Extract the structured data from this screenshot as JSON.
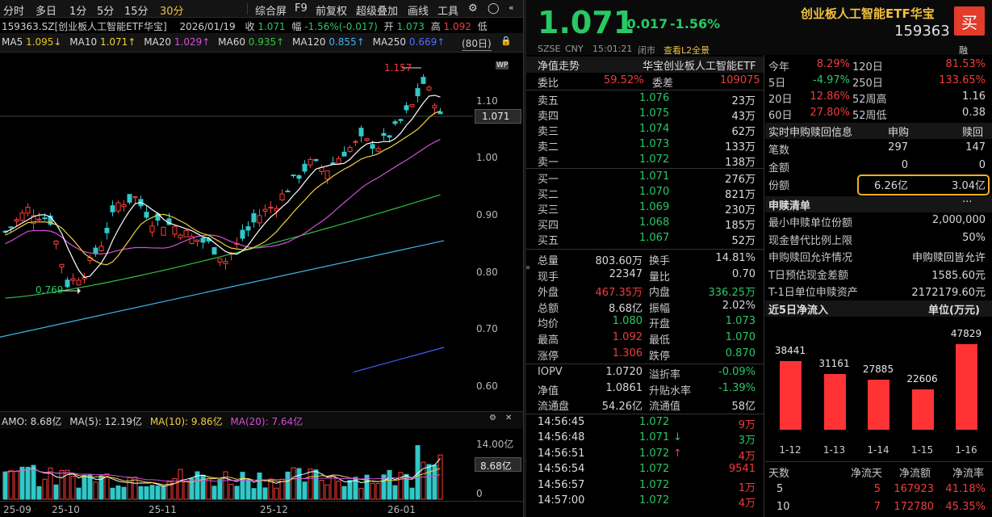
{
  "toolbar": {
    "items": [
      "分时",
      "多日",
      "1分",
      "5分",
      "15分",
      "30分",
      "综合屏",
      "F9",
      "前复权",
      "超级叠加",
      "画线",
      "工具"
    ],
    "active": "30分"
  },
  "info": {
    "symbol": "159363.SZ[创业板人工智能ETF华宝]",
    "date": "2026/01/19",
    "close_l": "收",
    "close": "1.071",
    "chg_l": "幅",
    "chg": "-1.56%(-0.017)",
    "open_l": "开",
    "open": "1.073",
    "high_l": "高",
    "high": "1.092",
    "trunc": "低"
  },
  "ma": {
    "ma5": "MA5",
    "v5": "1.095↓",
    "ma10": "MA10",
    "v10": "1.071↑",
    "ma20": "MA20",
    "v20": "1.029↑",
    "ma60": "MA60",
    "v60": "0.935↑",
    "ma120": "MA120",
    "v120": "0.855↑",
    "ma250": "MA250",
    "v250": "0.669↑",
    "period": "(80日)"
  },
  "price_ticks": [
    "1.10",
    "1.00",
    "0.90",
    "0.80",
    "0.70",
    "0.60"
  ],
  "price_current": "1.071",
  "marker_high": "1.157",
  "marker_low": "0.769",
  "amo": {
    "label": "AMO: 8.68亿",
    "ma5": "MA(5): 12.19亿",
    "ma10": "MA(10): 9.86亿",
    "ma20": "MA(20): 7.64亿",
    "tick1": "14.00亿",
    "current": "8.68亿",
    "tick0": "0"
  },
  "x_axis": [
    "25-09",
    "25-10",
    "25-11",
    "25-12",
    "26-01"
  ],
  "header": {
    "price": "1.071",
    "change": "-0.017",
    "pct": "-1.56%",
    "name": "创业板人工智能ETF华宝",
    "code": "159363",
    "buy": "买",
    "market": "SZSE",
    "cur": "CNY",
    "time": "15:01:21",
    "status": "闭市",
    "l2": "查看L2全景",
    "rong": "融"
  },
  "orderbook": {
    "nav_l": "净值走势",
    "fund": "华宝创业板人工智能ETF",
    "weibi_l": "委比",
    "weibi": "59.52%",
    "weicha_l": "委差",
    "weicha": "109075",
    "asks": [
      {
        "l": "卖五",
        "p": "1.076",
        "v": "23万"
      },
      {
        "l": "卖四",
        "p": "1.075",
        "v": "43万"
      },
      {
        "l": "卖三",
        "p": "1.074",
        "v": "62万"
      },
      {
        "l": "卖二",
        "p": "1.073",
        "v": "133万"
      },
      {
        "l": "卖一",
        "p": "1.072",
        "v": "138万"
      }
    ],
    "bids": [
      {
        "l": "买一",
        "p": "1.071",
        "v": "276万"
      },
      {
        "l": "买二",
        "p": "1.070",
        "v": "821万"
      },
      {
        "l": "买三",
        "p": "1.069",
        "v": "230万"
      },
      {
        "l": "买四",
        "p": "1.068",
        "v": "185万"
      },
      {
        "l": "买五",
        "p": "1.067",
        "v": "52万"
      }
    ]
  },
  "stats": [
    {
      "a": "总量",
      "av": "803.60万",
      "b": "换手",
      "bv": "14.81%",
      "ac": "wh",
      "bc": "wh"
    },
    {
      "a": "现手",
      "av": "22347",
      "b": "量比",
      "bv": "0.70",
      "ac": "wh",
      "bc": "wh"
    },
    {
      "a": "外盘",
      "av": "467.35万",
      "b": "内盘",
      "bv": "336.25万",
      "ac": "up",
      "bc": "dn"
    },
    {
      "a": "总额",
      "av": "8.68亿",
      "b": "振幅",
      "bv": "2.02%",
      "ac": "wh",
      "bc": "wh"
    },
    {
      "a": "均价",
      "av": "1.080",
      "b": "开盘",
      "bv": "1.073",
      "ac": "dn",
      "bc": "dn"
    },
    {
      "a": "最高",
      "av": "1.092",
      "b": "最低",
      "bv": "1.070",
      "ac": "up",
      "bc": "dn"
    },
    {
      "a": "涨停",
      "av": "1.306",
      "b": "跌停",
      "bv": "0.870",
      "ac": "up",
      "bc": "dn"
    }
  ],
  "iopv": [
    {
      "a": "IOPV",
      "av": "1.0720",
      "b": "溢折率",
      "bv": "-0.09%",
      "ac": "wh",
      "bc": "dn"
    },
    {
      "a": "净值",
      "av": "1.0861",
      "b": "升贴水率",
      "bv": "-1.39%",
      "ac": "wh",
      "bc": "dn"
    },
    {
      "a": "流通盘",
      "av": "54.26亿",
      "b": "流通值",
      "bv": "58亿",
      "ac": "wh",
      "bc": "wh"
    }
  ],
  "trades": [
    {
      "t": "14:56:45",
      "p": "1.072",
      "a": "",
      "v": "9万",
      "vc": "up"
    },
    {
      "t": "14:56:48",
      "p": "1.071",
      "a": "↓",
      "v": "3万",
      "vc": "dn"
    },
    {
      "t": "14:56:51",
      "p": "1.072",
      "a": "↑",
      "v": "4万",
      "vc": "up"
    },
    {
      "t": "14:56:54",
      "p": "1.072",
      "a": "",
      "v": "9541",
      "vc": "up"
    },
    {
      "t": "14:56:57",
      "p": "1.072",
      "a": "",
      "v": "1万",
      "vc": "up"
    },
    {
      "t": "14:57:00",
      "p": "1.072",
      "a": "",
      "v": "4万",
      "vc": "up"
    }
  ],
  "perf": [
    {
      "a": "今年",
      "av": "8.29%",
      "b": "120日",
      "bv": "81.53%",
      "ac": "up",
      "bc": "up"
    },
    {
      "a": "5日",
      "av": "-4.97%",
      "b": "250日",
      "bv": "133.65%",
      "ac": "dn",
      "bc": "up"
    },
    {
      "a": "20日",
      "av": "12.86%",
      "b": "52周高",
      "bv": "1.16",
      "ac": "up",
      "bc": "wh"
    },
    {
      "a": "60日",
      "av": "27.80%",
      "b": "52周低",
      "bv": "0.38",
      "ac": "up",
      "bc": "wh"
    }
  ],
  "redeem": {
    "title": "实时申购赎回信息",
    "col1": "申购",
    "col2": "赎回",
    "rows": [
      {
        "l": "笔数",
        "a": "297",
        "b": "147"
      },
      {
        "l": "金额",
        "a": "0",
        "b": "0"
      },
      {
        "l": "份额",
        "a": "6.26亿",
        "b": "3.04亿"
      }
    ]
  },
  "list": {
    "title": "申赎清单",
    "more": "···",
    "rows": [
      {
        "l": "最小申赎单位份额",
        "v": "2,000,000"
      },
      {
        "l": "现金替代比例上限",
        "v": "50%"
      },
      {
        "l": "申购赎回允许情况",
        "v": "申购赎回皆允许"
      },
      {
        "l": "T日预估现金差额",
        "v": "1585.60元"
      },
      {
        "l": "T-1日单位申赎资产",
        "v": "2172179.60元"
      }
    ]
  },
  "flow": {
    "title": "近5日净流入",
    "unit": "单位(万元)",
    "chart_data": {
      "type": "bar",
      "categories": [
        "1-12",
        "1-13",
        "1-14",
        "1-15",
        "1-16"
      ],
      "values": [
        38441,
        31161,
        27885,
        22606,
        47829
      ],
      "color": "#ff3333"
    },
    "table_head": [
      "天数",
      "净流天",
      "净流额",
      "净流率"
    ],
    "table": [
      {
        "d": "5",
        "n": "5",
        "v": "167923",
        "r": "41.18%"
      },
      {
        "d": "10",
        "n": "7",
        "v": "172780",
        "r": "45.35%"
      }
    ]
  }
}
